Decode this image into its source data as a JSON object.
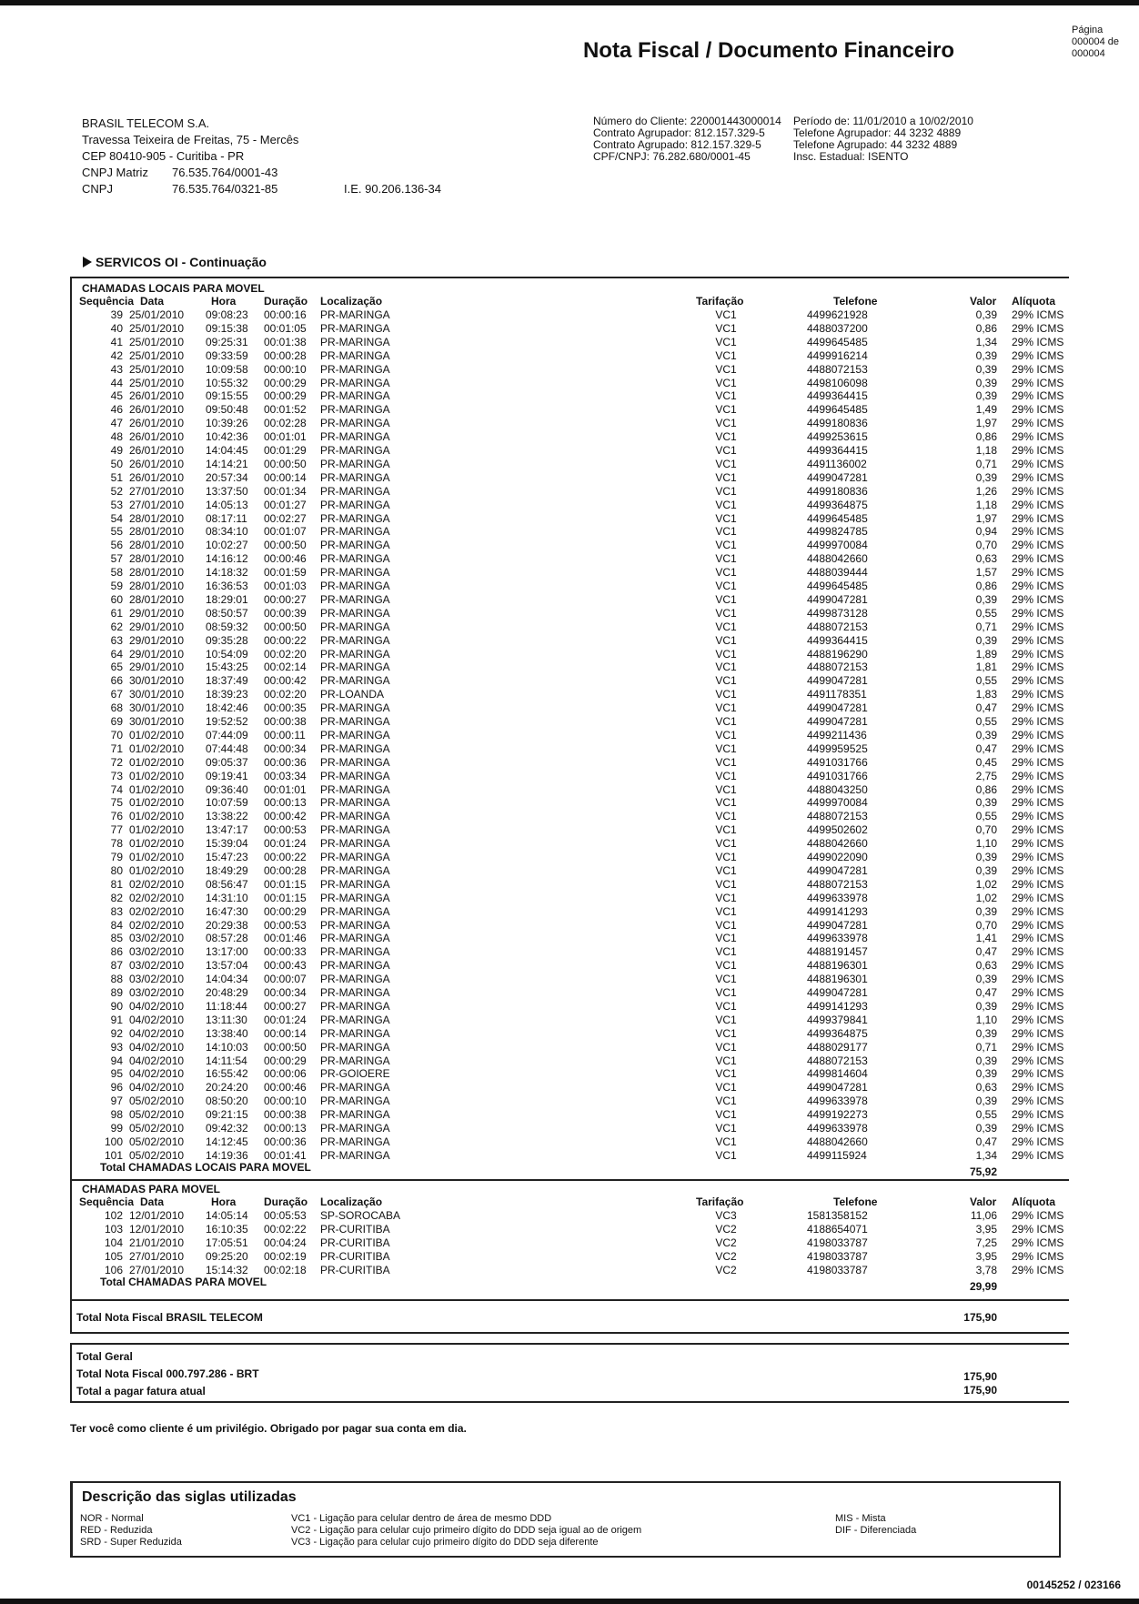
{
  "header": {
    "title": "Nota Fiscal / Documento Financeiro",
    "page": [
      "Página",
      "000004 de",
      "000004"
    ]
  },
  "company": {
    "name": "BRASIL TELECOM S.A.",
    "address": "Travessa Teixeira de Freitas, 75 - Mercês",
    "cep": "CEP 80410-905 - Curitiba - PR",
    "cnpj_matriz_label": "CNPJ Matriz",
    "cnpj_matriz": "76.535.764/0001-43",
    "cnpj_label": "CNPJ",
    "cnpj": "76.535.764/0321-85",
    "ie": "I.E. 90.206.136-34"
  },
  "client_info": {
    "left": [
      "Número do Cliente: 220001443000014",
      "Contrato Agrupador: 812.157.329-5",
      "Contrato Agrupado: 812.157.329-5",
      "CPF/CNPJ: 76.282.680/0001-45"
    ],
    "right": [
      "Período de: 11/01/2010 a 10/02/2010",
      "Telefone Agrupador: 44 3232 4889",
      "Telefone Agrupado: 44 3232 4889",
      "Insc. Estadual: ISENTO"
    ]
  },
  "section_title": "SERVICOS OI - Continuação",
  "columns": [
    "Sequência",
    "Data",
    "Hora",
    "Duração",
    "Localização",
    "Tarifação",
    "Telefone",
    "Valor",
    "Alíquota"
  ],
  "tables": [
    {
      "title": "CHAMADAS LOCAIS PARA MOVEL",
      "rows": [
        [
          "39",
          "25/01/2010",
          "09:08:23",
          "00:00:16",
          "PR-MARINGA",
          "VC1",
          "4499621928",
          "0,39",
          "29% ICMS"
        ],
        [
          "40",
          "25/01/2010",
          "09:15:38",
          "00:01:05",
          "PR-MARINGA",
          "VC1",
          "4488037200",
          "0,86",
          "29% ICMS"
        ],
        [
          "41",
          "25/01/2010",
          "09:25:31",
          "00:01:38",
          "PR-MARINGA",
          "VC1",
          "4499645485",
          "1,34",
          "29% ICMS"
        ],
        [
          "42",
          "25/01/2010",
          "09:33:59",
          "00:00:28",
          "PR-MARINGA",
          "VC1",
          "4499916214",
          "0,39",
          "29% ICMS"
        ],
        [
          "43",
          "25/01/2010",
          "10:09:58",
          "00:00:10",
          "PR-MARINGA",
          "VC1",
          "4488072153",
          "0,39",
          "29% ICMS"
        ],
        [
          "44",
          "25/01/2010",
          "10:55:32",
          "00:00:29",
          "PR-MARINGA",
          "VC1",
          "4498106098",
          "0,39",
          "29% ICMS"
        ],
        [
          "45",
          "26/01/2010",
          "09:15:55",
          "00:00:29",
          "PR-MARINGA",
          "VC1",
          "4499364415",
          "0,39",
          "29% ICMS"
        ],
        [
          "46",
          "26/01/2010",
          "09:50:48",
          "00:01:52",
          "PR-MARINGA",
          "VC1",
          "4499645485",
          "1,49",
          "29% ICMS"
        ],
        [
          "47",
          "26/01/2010",
          "10:39:26",
          "00:02:28",
          "PR-MARINGA",
          "VC1",
          "4499180836",
          "1,97",
          "29% ICMS"
        ],
        [
          "48",
          "26/01/2010",
          "10:42:36",
          "00:01:01",
          "PR-MARINGA",
          "VC1",
          "4499253615",
          "0,86",
          "29% ICMS"
        ],
        [
          "49",
          "26/01/2010",
          "14:04:45",
          "00:01:29",
          "PR-MARINGA",
          "VC1",
          "4499364415",
          "1,18",
          "29% ICMS"
        ],
        [
          "50",
          "26/01/2010",
          "14:14:21",
          "00:00:50",
          "PR-MARINGA",
          "VC1",
          "4491136002",
          "0,71",
          "29% ICMS"
        ],
        [
          "51",
          "26/01/2010",
          "20:57:34",
          "00:00:14",
          "PR-MARINGA",
          "VC1",
          "4499047281",
          "0,39",
          "29% ICMS"
        ],
        [
          "52",
          "27/01/2010",
          "13:37:50",
          "00:01:34",
          "PR-MARINGA",
          "VC1",
          "4499180836",
          "1,26",
          "29% ICMS"
        ],
        [
          "53",
          "27/01/2010",
          "14:05:13",
          "00:01:27",
          "PR-MARINGA",
          "VC1",
          "4499364875",
          "1,18",
          "29% ICMS"
        ],
        [
          "54",
          "28/01/2010",
          "08:17:11",
          "00:02:27",
          "PR-MARINGA",
          "VC1",
          "4499645485",
          "1,97",
          "29% ICMS"
        ],
        [
          "55",
          "28/01/2010",
          "08:34:10",
          "00:01:07",
          "PR-MARINGA",
          "VC1",
          "4499824785",
          "0,94",
          "29% ICMS"
        ],
        [
          "56",
          "28/01/2010",
          "10:02:27",
          "00:00:50",
          "PR-MARINGA",
          "VC1",
          "4499970084",
          "0,70",
          "29% ICMS"
        ],
        [
          "57",
          "28/01/2010",
          "14:16:12",
          "00:00:46",
          "PR-MARINGA",
          "VC1",
          "4488042660",
          "0,63",
          "29% ICMS"
        ],
        [
          "58",
          "28/01/2010",
          "14:18:32",
          "00:01:59",
          "PR-MARINGA",
          "VC1",
          "4488039444",
          "1,57",
          "29% ICMS"
        ],
        [
          "59",
          "28/01/2010",
          "16:36:53",
          "00:01:03",
          "PR-MARINGA",
          "VC1",
          "4499645485",
          "0,86",
          "29% ICMS"
        ],
        [
          "60",
          "28/01/2010",
          "18:29:01",
          "00:00:27",
          "PR-MARINGA",
          "VC1",
          "4499047281",
          "0,39",
          "29% ICMS"
        ],
        [
          "61",
          "29/01/2010",
          "08:50:57",
          "00:00:39",
          "PR-MARINGA",
          "VC1",
          "4499873128",
          "0,55",
          "29% ICMS"
        ],
        [
          "62",
          "29/01/2010",
          "08:59:32",
          "00:00:50",
          "PR-MARINGA",
          "VC1",
          "4488072153",
          "0,71",
          "29% ICMS"
        ],
        [
          "63",
          "29/01/2010",
          "09:35:28",
          "00:00:22",
          "PR-MARINGA",
          "VC1",
          "4499364415",
          "0,39",
          "29% ICMS"
        ],
        [
          "64",
          "29/01/2010",
          "10:54:09",
          "00:02:20",
          "PR-MARINGA",
          "VC1",
          "4488196290",
          "1,89",
          "29% ICMS"
        ],
        [
          "65",
          "29/01/2010",
          "15:43:25",
          "00:02:14",
          "PR-MARINGA",
          "VC1",
          "4488072153",
          "1,81",
          "29% ICMS"
        ],
        [
          "66",
          "30/01/2010",
          "18:37:49",
          "00:00:42",
          "PR-MARINGA",
          "VC1",
          "4499047281",
          "0,55",
          "29% ICMS"
        ],
        [
          "67",
          "30/01/2010",
          "18:39:23",
          "00:02:20",
          "PR-LOANDA",
          "VC1",
          "4491178351",
          "1,83",
          "29% ICMS"
        ],
        [
          "68",
          "30/01/2010",
          "18:42:46",
          "00:00:35",
          "PR-MARINGA",
          "VC1",
          "4499047281",
          "0,47",
          "29% ICMS"
        ],
        [
          "69",
          "30/01/2010",
          "19:52:52",
          "00:00:38",
          "PR-MARINGA",
          "VC1",
          "4499047281",
          "0,55",
          "29% ICMS"
        ],
        [
          "70",
          "01/02/2010",
          "07:44:09",
          "00:00:11",
          "PR-MARINGA",
          "VC1",
          "4499211436",
          "0,39",
          "29% ICMS"
        ],
        [
          "71",
          "01/02/2010",
          "07:44:48",
          "00:00:34",
          "PR-MARINGA",
          "VC1",
          "4499959525",
          "0,47",
          "29% ICMS"
        ],
        [
          "72",
          "01/02/2010",
          "09:05:37",
          "00:00:36",
          "PR-MARINGA",
          "VC1",
          "4491031766",
          "0,45",
          "29% ICMS"
        ],
        [
          "73",
          "01/02/2010",
          "09:19:41",
          "00:03:34",
          "PR-MARINGA",
          "VC1",
          "4491031766",
          "2,75",
          "29% ICMS"
        ],
        [
          "74",
          "01/02/2010",
          "09:36:40",
          "00:01:01",
          "PR-MARINGA",
          "VC1",
          "4488043250",
          "0,86",
          "29% ICMS"
        ],
        [
          "75",
          "01/02/2010",
          "10:07:59",
          "00:00:13",
          "PR-MARINGA",
          "VC1",
          "4499970084",
          "0,39",
          "29% ICMS"
        ],
        [
          "76",
          "01/02/2010",
          "13:38:22",
          "00:00:42",
          "PR-MARINGA",
          "VC1",
          "4488072153",
          "0,55",
          "29% ICMS"
        ],
        [
          "77",
          "01/02/2010",
          "13:47:17",
          "00:00:53",
          "PR-MARINGA",
          "VC1",
          "4499502602",
          "0,70",
          "29% ICMS"
        ],
        [
          "78",
          "01/02/2010",
          "15:39:04",
          "00:01:24",
          "PR-MARINGA",
          "VC1",
          "4488042660",
          "1,10",
          "29% ICMS"
        ],
        [
          "79",
          "01/02/2010",
          "15:47:23",
          "00:00:22",
          "PR-MARINGA",
          "VC1",
          "4499022090",
          "0,39",
          "29% ICMS"
        ],
        [
          "80",
          "01/02/2010",
          "18:49:29",
          "00:00:28",
          "PR-MARINGA",
          "VC1",
          "4499047281",
          "0,39",
          "29% ICMS"
        ],
        [
          "81",
          "02/02/2010",
          "08:56:47",
          "00:01:15",
          "PR-MARINGA",
          "VC1",
          "4488072153",
          "1,02",
          "29% ICMS"
        ],
        [
          "82",
          "02/02/2010",
          "14:31:10",
          "00:01:15",
          "PR-MARINGA",
          "VC1",
          "4499633978",
          "1,02",
          "29% ICMS"
        ],
        [
          "83",
          "02/02/2010",
          "16:47:30",
          "00:00:29",
          "PR-MARINGA",
          "VC1",
          "4499141293",
          "0,39",
          "29% ICMS"
        ],
        [
          "84",
          "02/02/2010",
          "20:29:38",
          "00:00:53",
          "PR-MARINGA",
          "VC1",
          "4499047281",
          "0,70",
          "29% ICMS"
        ],
        [
          "85",
          "03/02/2010",
          "08:57:28",
          "00:01:46",
          "PR-MARINGA",
          "VC1",
          "4499633978",
          "1,41",
          "29% ICMS"
        ],
        [
          "86",
          "03/02/2010",
          "13:17:00",
          "00:00:33",
          "PR-MARINGA",
          "VC1",
          "4488191457",
          "0,47",
          "29% ICMS"
        ],
        [
          "87",
          "03/02/2010",
          "13:57:04",
          "00:00:43",
          "PR-MARINGA",
          "VC1",
          "4488196301",
          "0,63",
          "29% ICMS"
        ],
        [
          "88",
          "03/02/2010",
          "14:04:34",
          "00:00:07",
          "PR-MARINGA",
          "VC1",
          "4488196301",
          "0,39",
          "29% ICMS"
        ],
        [
          "89",
          "03/02/2010",
          "20:48:29",
          "00:00:34",
          "PR-MARINGA",
          "VC1",
          "4499047281",
          "0,47",
          "29% ICMS"
        ],
        [
          "90",
          "04/02/2010",
          "11:18:44",
          "00:00:27",
          "PR-MARINGA",
          "VC1",
          "4499141293",
          "0,39",
          "29% ICMS"
        ],
        [
          "91",
          "04/02/2010",
          "13:11:30",
          "00:01:24",
          "PR-MARINGA",
          "VC1",
          "4499379841",
          "1,10",
          "29% ICMS"
        ],
        [
          "92",
          "04/02/2010",
          "13:38:40",
          "00:00:14",
          "PR-MARINGA",
          "VC1",
          "4499364875",
          "0,39",
          "29% ICMS"
        ],
        [
          "93",
          "04/02/2010",
          "14:10:03",
          "00:00:50",
          "PR-MARINGA",
          "VC1",
          "4488029177",
          "0,71",
          "29% ICMS"
        ],
        [
          "94",
          "04/02/2010",
          "14:11:54",
          "00:00:29",
          "PR-MARINGA",
          "VC1",
          "4488072153",
          "0,39",
          "29% ICMS"
        ],
        [
          "95",
          "04/02/2010",
          "16:55:42",
          "00:00:06",
          "PR-GOIOERE",
          "VC1",
          "4499814604",
          "0,39",
          "29% ICMS"
        ],
        [
          "96",
          "04/02/2010",
          "20:24:20",
          "00:00:46",
          "PR-MARINGA",
          "VC1",
          "4499047281",
          "0,63",
          "29% ICMS"
        ],
        [
          "97",
          "05/02/2010",
          "08:50:20",
          "00:00:10",
          "PR-MARINGA",
          "VC1",
          "4499633978",
          "0,39",
          "29% ICMS"
        ],
        [
          "98",
          "05/02/2010",
          "09:21:15",
          "00:00:38",
          "PR-MARINGA",
          "VC1",
          "4499192273",
          "0,55",
          "29% ICMS"
        ],
        [
          "99",
          "05/02/2010",
          "09:42:32",
          "00:00:13",
          "PR-MARINGA",
          "VC1",
          "4499633978",
          "0,39",
          "29% ICMS"
        ],
        [
          "100",
          "05/02/2010",
          "14:12:45",
          "00:00:36",
          "PR-MARINGA",
          "VC1",
          "4488042660",
          "0,47",
          "29% ICMS"
        ],
        [
          "101",
          "05/02/2010",
          "14:19:36",
          "00:01:41",
          "PR-MARINGA",
          "VC1",
          "4499115924",
          "1,34",
          "29% ICMS"
        ]
      ],
      "total_label": "Total CHAMADAS LOCAIS PARA MOVEL",
      "total": "75,92"
    },
    {
      "title": "CHAMADAS PARA MOVEL",
      "rows": [
        [
          "102",
          "12/01/2010",
          "14:05:14",
          "00:05:53",
          "SP-SOROCABA",
          "VC3",
          "1581358152",
          "11,06",
          "29% ICMS"
        ],
        [
          "103",
          "12/01/2010",
          "16:10:35",
          "00:02:22",
          "PR-CURITIBA",
          "VC2",
          "4188654071",
          "3,95",
          "29% ICMS"
        ],
        [
          "104",
          "21/01/2010",
          "17:05:51",
          "00:04:24",
          "PR-CURITIBA",
          "VC2",
          "4198033787",
          "7,25",
          "29% ICMS"
        ],
        [
          "105",
          "27/01/2010",
          "09:25:20",
          "00:02:19",
          "PR-CURITIBA",
          "VC2",
          "4198033787",
          "3,95",
          "29% ICMS"
        ],
        [
          "106",
          "27/01/2010",
          "15:14:32",
          "00:02:18",
          "PR-CURITIBA",
          "VC2",
          "4198033787",
          "3,78",
          "29% ICMS"
        ]
      ],
      "total_label": "Total CHAMADAS PARA MOVEL",
      "total": "29,99"
    }
  ],
  "nf_total": {
    "label": "Total Nota Fiscal  BRASIL TELECOM",
    "value": "175,90"
  },
  "grand_total": {
    "title": "Total Geral",
    "nf_label": "Total Nota Fiscal  000.797.286 - BRT",
    "nf_value": "175,90",
    "pay_label": "Total a pagar fatura atual",
    "pay_value": "175,90"
  },
  "thanks": "Ter você como cliente é um privilégio. Obrigado por pagar sua conta em dia.",
  "legend": {
    "title": "Descrição das siglas utilizadas",
    "col1": [
      "NOR - Normal",
      "RED - Reduzida",
      "SRD - Super Reduzida"
    ],
    "col2": [
      "VC1 - Ligação para celular dentro de área de mesmo DDD",
      "VC2 - Ligação para celular cujo primeiro dígito do DDD seja igual ao de origem",
      "VC3 - Ligação para celular cujo primeiro dígito do DDD seja diferente"
    ],
    "col3": [
      "MIS - Mista",
      "DIF - Diferenciada"
    ]
  },
  "footer": "00145252 / 023166"
}
